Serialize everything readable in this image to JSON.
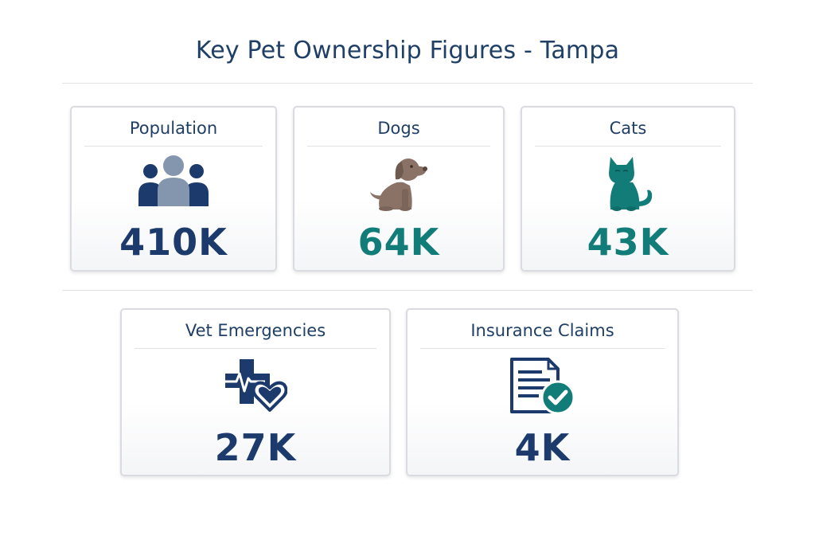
{
  "page": {
    "title": "Key Pet Ownership Figures - Tampa"
  },
  "colors": {
    "navy": "#1c3a6b",
    "teal": "#127d78",
    "brown": "#8a7266",
    "slate": "#8496ad"
  },
  "cards": [
    {
      "label": "Population",
      "value": "410K",
      "icon": "people-icon"
    },
    {
      "label": "Dogs",
      "value": "64K",
      "icon": "dog-icon"
    },
    {
      "label": "Cats",
      "value": "43K",
      "icon": "cat-icon"
    },
    {
      "label": "Vet Emergencies",
      "value": "27K",
      "icon": "medical-cross-heart-icon"
    },
    {
      "label": "Insurance Claims",
      "value": "4K",
      "icon": "document-check-icon"
    }
  ]
}
